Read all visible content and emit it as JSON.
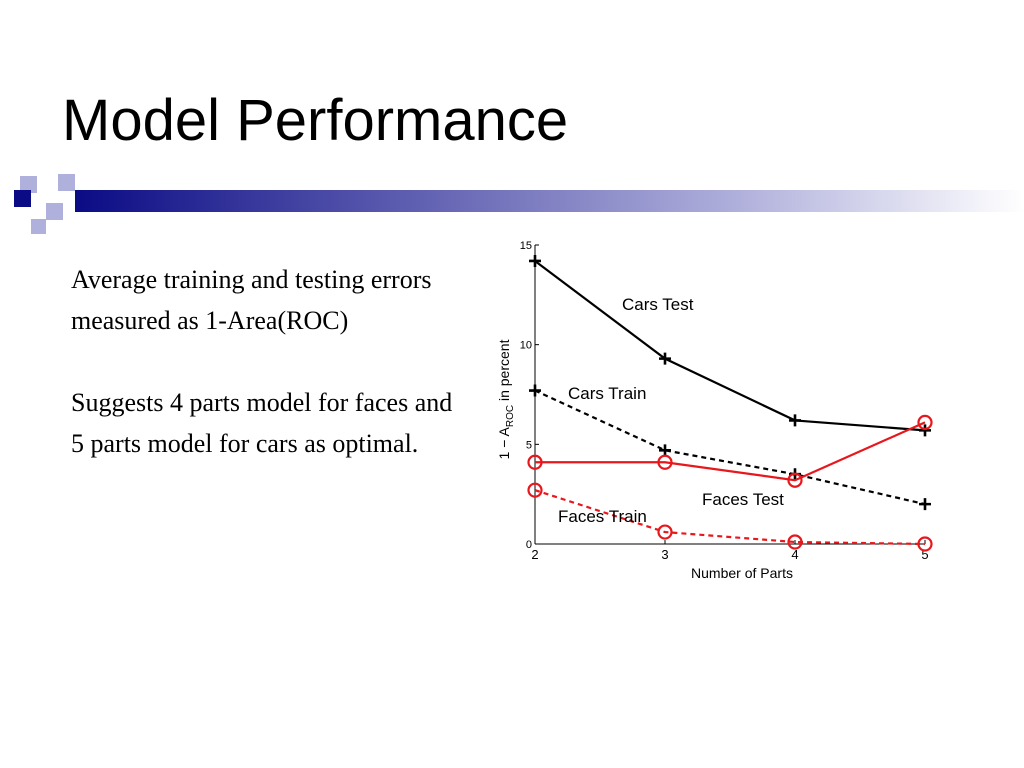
{
  "slide": {
    "title": "Model Performance",
    "paragraphs": [
      "Average training and testing errors measured as 1-Area(ROC)",
      "Suggests 4 parts model for faces and 5 parts model for cars as optimal."
    ]
  },
  "colors": {
    "accent_navy": "#0b0b85",
    "accent_lavender": "#b0b0dc",
    "series_black": "#000000",
    "series_red": "#e8171c"
  },
  "chart_data": {
    "type": "line",
    "x": [
      2,
      3,
      4,
      5
    ],
    "xlabel": "Number of Parts",
    "ylabel": "1 − A",
    "ylabel_subscript": "ROC",
    "ylabel_suffix": " in percent",
    "xlim": [
      2,
      5
    ],
    "ylim": [
      0,
      15
    ],
    "xticks": [
      "2",
      "3",
      "4",
      "5"
    ],
    "yticks": [
      "0",
      "5",
      "10",
      "15"
    ],
    "grid": false,
    "series": [
      {
        "name": "Cars Test",
        "values": [
          14.2,
          9.3,
          6.2,
          5.7
        ],
        "color": "#000000",
        "dash": "solid",
        "marker": "plus"
      },
      {
        "name": "Cars Train",
        "values": [
          7.7,
          4.7,
          3.5,
          2.0
        ],
        "color": "#000000",
        "dash": "dashed",
        "marker": "plus"
      },
      {
        "name": "Faces Test",
        "values": [
          4.1,
          4.1,
          3.2,
          6.1
        ],
        "color": "#e8171c",
        "dash": "solid",
        "marker": "circle"
      },
      {
        "name": "Faces Train",
        "values": [
          2.7,
          0.6,
          0.1,
          0.0
        ],
        "color": "#e8171c",
        "dash": "dashed",
        "marker": "circle"
      }
    ]
  }
}
